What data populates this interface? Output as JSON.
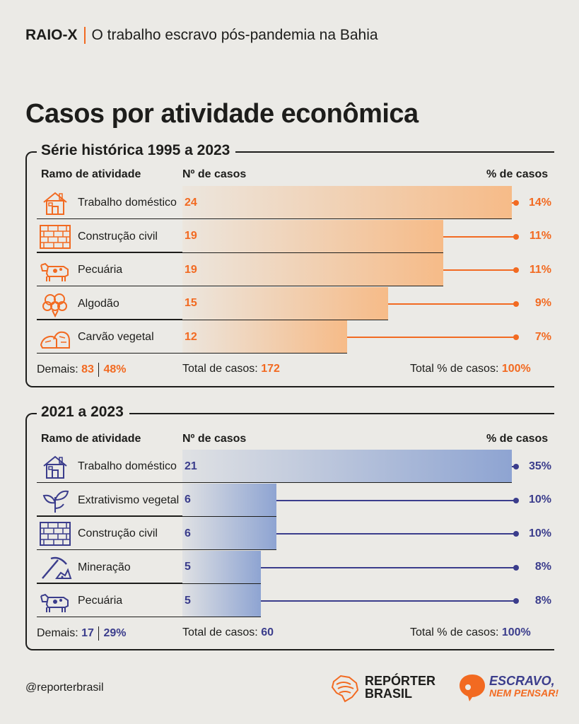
{
  "header": {
    "kicker_bold": "RAIO-X",
    "kicker_text": "O trabalho escravo pós-pandemia na Bahia"
  },
  "title": "Casos por atividade econômica",
  "colors": {
    "orange": "#f26a21",
    "blue": "#3b3d8c",
    "background": "#ebeae6"
  },
  "col_headers": {
    "activity": "Ramo de atividade",
    "cases": "Nº de casos",
    "percent": "% de casos"
  },
  "chart_data": [
    {
      "type": "bar",
      "title": "Série histórica 1995 a 2023",
      "categories": [
        "Trabalho doméstico",
        "Construção civil",
        "Pecuária",
        "Algodão",
        "Carvão vegetal"
      ],
      "icons": [
        "house-icon",
        "bricks-icon",
        "cow-icon",
        "cotton-icon",
        "charcoal-icon"
      ],
      "values": [
        24,
        19,
        19,
        15,
        12
      ],
      "percents": [
        "14%",
        "11%",
        "11%",
        "9%",
        "7%"
      ],
      "xlim": [
        0,
        24
      ],
      "footer": {
        "others_label": "Demais:",
        "others_value": "83",
        "others_pct": "48%",
        "total_label": "Total de casos:",
        "total_value": "172",
        "total_pct_label": "Total % de casos:",
        "total_pct_value": "100%"
      }
    },
    {
      "type": "bar",
      "title": "2021 a 2023",
      "categories": [
        "Trabalho doméstico",
        "Extrativismo vegetal",
        "Construção civil",
        "Mineração",
        "Pecuária"
      ],
      "icons": [
        "house-icon",
        "plant-icon",
        "bricks-icon",
        "pickaxe-icon",
        "cow-icon"
      ],
      "values": [
        21,
        6,
        6,
        5,
        5
      ],
      "percents": [
        "35%",
        "10%",
        "10%",
        "8%",
        "8%"
      ],
      "xlim": [
        0,
        21
      ],
      "footer": {
        "others_label": "Demais:",
        "others_value": "17",
        "others_pct": "29%",
        "total_label": "Total de casos:",
        "total_value": "60",
        "total_pct_label": "Total % de casos:",
        "total_pct_value": "100%"
      }
    }
  ],
  "footer": {
    "handle": "@reporterbrasil",
    "logo1_line1": "REPÓRTER",
    "logo1_line2": "BRASIL",
    "logo2_line1": "ESCRAVO,",
    "logo2_line2": "NEM PENSAR!"
  }
}
